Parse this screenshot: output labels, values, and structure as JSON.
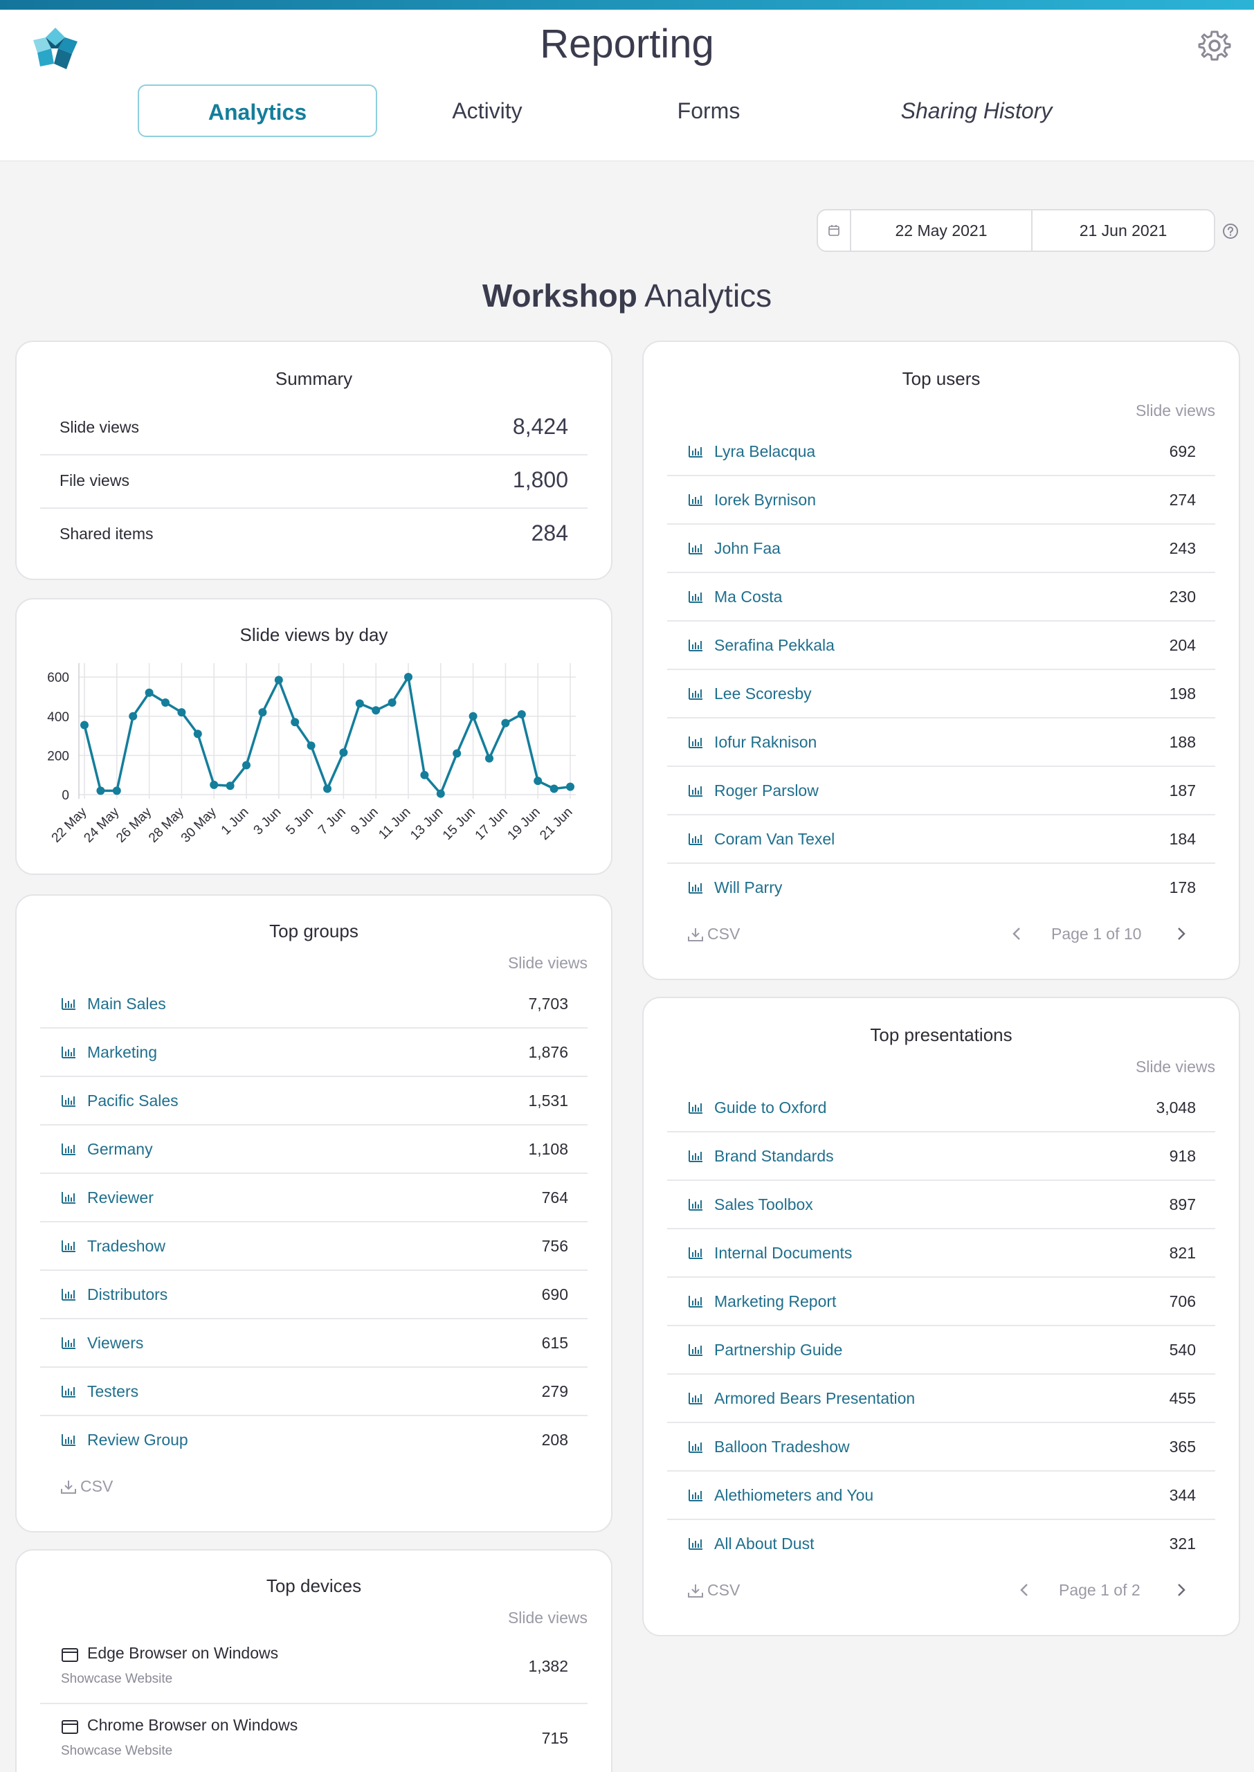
{
  "app": {
    "title": "Reporting",
    "tabs": [
      {
        "label": "Analytics"
      },
      {
        "label": "Activity"
      },
      {
        "label": "Forms"
      },
      {
        "label": "Sharing History"
      }
    ]
  },
  "date_range": {
    "from": "22 May 2021",
    "to": "21 Jun 2021"
  },
  "page": {
    "title_bold": "Workshop",
    "title_rest": " Analytics"
  },
  "colors": {
    "accent": "#147e9b",
    "line": "#147e9b"
  },
  "summary": {
    "title": "Summary",
    "rows": [
      {
        "label": "Slide views",
        "value": "8,424"
      },
      {
        "label": "File views",
        "value": "1,800"
      },
      {
        "label": "Shared items",
        "value": "284"
      }
    ]
  },
  "slide_chart": {
    "title": "Slide views by day"
  },
  "chart_data": {
    "type": "line",
    "title": "Slide views by day",
    "xlabel": "",
    "ylabel": "",
    "ylim": [
      0,
      650
    ],
    "yticks": [
      0,
      200,
      400,
      600
    ],
    "grid": true,
    "x": [
      "22 May",
      "23 May",
      "24 May",
      "25 May",
      "26 May",
      "27 May",
      "28 May",
      "29 May",
      "30 May",
      "31 May",
      "1 Jun",
      "2 Jun",
      "3 Jun",
      "4 Jun",
      "5 Jun",
      "6 Jun",
      "7 Jun",
      "8 Jun",
      "9 Jun",
      "10 Jun",
      "11 Jun",
      "12 Jun",
      "13 Jun",
      "14 Jun",
      "15 Jun",
      "16 Jun",
      "17 Jun",
      "18 Jun",
      "19 Jun",
      "20 Jun",
      "21 Jun"
    ],
    "xtick_labels": [
      "22 May",
      "24 May",
      "26 May",
      "28 May",
      "30 May",
      "1 Jun",
      "3 Jun",
      "5 Jun",
      "7 Jun",
      "9 Jun",
      "11 Jun",
      "13 Jun",
      "15 Jun",
      "17 Jun",
      "19 Jun",
      "21 Jun"
    ],
    "series": [
      {
        "values": [
          355,
          20,
          20,
          400,
          520,
          470,
          420,
          310,
          50,
          45,
          150,
          420,
          585,
          370,
          250,
          30,
          215,
          465,
          430,
          470,
          600,
          100,
          5,
          210,
          400,
          185,
          365,
          410,
          70,
          30,
          40
        ]
      }
    ]
  },
  "top_groups": {
    "title": "Top groups",
    "col_header": "Slide views",
    "csv": "CSV",
    "rows": [
      {
        "label": "Main Sales",
        "value": "7,703"
      },
      {
        "label": "Marketing",
        "value": "1,876"
      },
      {
        "label": "Pacific Sales",
        "value": "1,531"
      },
      {
        "label": "Germany",
        "value": "1,108"
      },
      {
        "label": "Reviewer",
        "value": "764"
      },
      {
        "label": "Tradeshow",
        "value": "756"
      },
      {
        "label": "Distributors",
        "value": "690"
      },
      {
        "label": "Viewers",
        "value": "615"
      },
      {
        "label": "Testers",
        "value": "279"
      },
      {
        "label": "Review Group",
        "value": "208"
      }
    ]
  },
  "top_devices": {
    "title": "Top devices",
    "col_header": "Slide views",
    "rows": [
      {
        "label": "Edge Browser on Windows",
        "sub": "Showcase Website",
        "value": "1,382"
      },
      {
        "label": "Chrome Browser on Windows",
        "sub": "Showcase Website",
        "value": "715"
      }
    ]
  },
  "top_users": {
    "title": "Top users",
    "col_header": "Slide views",
    "csv": "CSV",
    "page_text": "Page 1 of 10",
    "rows": [
      {
        "label": "Lyra Belacqua",
        "value": "692"
      },
      {
        "label": "Iorek Byrnison",
        "value": "274"
      },
      {
        "label": "John Faa",
        "value": "243"
      },
      {
        "label": "Ma Costa",
        "value": "230"
      },
      {
        "label": "Serafina Pekkala",
        "value": "204"
      },
      {
        "label": "Lee Scoresby",
        "value": "198"
      },
      {
        "label": "Iofur Raknison",
        "value": "188"
      },
      {
        "label": "Roger Parslow",
        "value": "187"
      },
      {
        "label": "Coram Van Texel",
        "value": "184"
      },
      {
        "label": "Will Parry",
        "value": "178"
      }
    ]
  },
  "top_presentations": {
    "title": "Top presentations",
    "col_header": "Slide views",
    "csv": "CSV",
    "page_text": "Page 1 of 2",
    "rows": [
      {
        "label": "Guide to Oxford",
        "value": "3,048"
      },
      {
        "label": "Brand Standards",
        "value": "918"
      },
      {
        "label": "Sales Toolbox",
        "value": "897"
      },
      {
        "label": "Internal Documents",
        "value": "821"
      },
      {
        "label": "Marketing Report",
        "value": "706"
      },
      {
        "label": "Partnership Guide",
        "value": "540"
      },
      {
        "label": "Armored Bears Presentation",
        "value": "455"
      },
      {
        "label": "Balloon Tradeshow",
        "value": "365"
      },
      {
        "label": "Alethiometers and You",
        "value": "344"
      },
      {
        "label": "All About Dust",
        "value": "321"
      }
    ]
  }
}
